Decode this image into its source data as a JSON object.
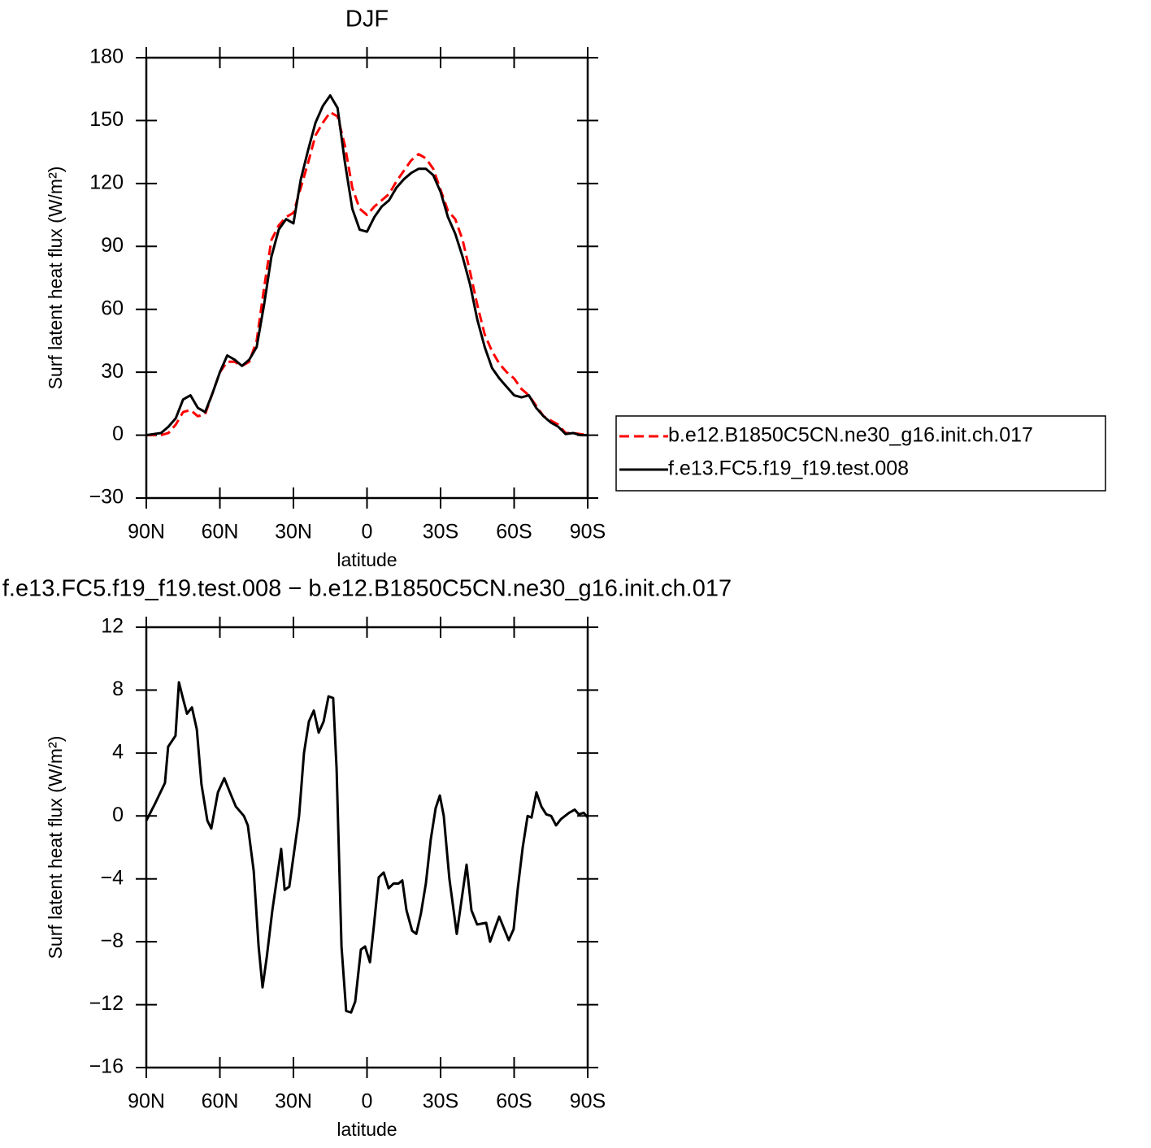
{
  "chart_data": [
    {
      "type": "line",
      "title": "DJF",
      "xlabel": "latitude",
      "ylabel": "Surf latent heat flux (W/m²)",
      "xlim": [
        90,
        -90
      ],
      "ylim": [
        -30,
        180
      ],
      "xticks": [
        {
          "value": 90,
          "label": "90N"
        },
        {
          "value": 60,
          "label": "60N"
        },
        {
          "value": 30,
          "label": "30N"
        },
        0,
        {
          "value": -30,
          "label": "30S"
        },
        {
          "value": -60,
          "label": "60S"
        },
        {
          "value": -90,
          "label": "90S"
        }
      ],
      "yticks": [
        {
          "value": -30,
          "label": "−30"
        },
        0,
        30,
        60,
        90,
        120,
        150,
        180
      ],
      "legend": "right",
      "x": [
        90,
        87,
        84,
        81,
        78,
        75,
        72,
        69,
        66,
        63,
        60,
        57,
        54,
        51,
        48,
        45,
        42,
        39,
        36,
        33,
        30,
        27,
        24,
        21,
        18,
        15,
        12,
        9,
        6,
        3,
        0,
        -3,
        -6,
        -9,
        -12,
        -15,
        -18,
        -21,
        -24,
        -27,
        -30,
        -33,
        -36,
        -39,
        -42,
        -45,
        -48,
        -51,
        -54,
        -57,
        -60,
        -63,
        -66,
        -69,
        -72,
        -75,
        -78,
        -81,
        -84,
        -87,
        -90
      ],
      "series": [
        {
          "name": "b.e12.B1850C5CN.ne30_g16.init.ch.017",
          "color": "#ff0000",
          "linestyle": "dashed",
          "values": [
            0,
            0,
            0,
            1,
            5,
            11,
            12,
            9,
            10,
            20,
            30,
            35,
            35,
            33,
            35,
            45,
            70,
            93,
            100,
            104,
            106,
            118,
            130,
            143,
            149,
            154,
            152,
            138,
            118,
            108,
            105,
            109,
            112,
            115,
            121,
            126,
            131,
            134,
            132,
            127,
            117,
            107,
            103,
            93,
            78,
            62,
            48,
            40,
            34,
            30,
            27,
            22,
            19,
            14,
            9,
            7,
            5,
            1,
            1,
            0.5,
            0
          ]
        },
        {
          "name": "f.e13.FC5.f19_f19.test.008",
          "color": "#000000",
          "linestyle": "solid",
          "values": [
            0,
            0.5,
            1,
            4,
            8,
            17,
            19,
            13,
            11,
            20,
            30,
            38,
            36,
            33,
            36,
            42,
            62,
            85,
            98,
            103,
            101,
            122,
            136,
            149,
            157,
            162,
            156,
            130,
            108,
            98,
            97,
            104,
            109,
            112,
            118,
            122,
            125,
            127,
            127,
            124,
            116,
            104,
            96,
            85,
            72,
            55,
            42,
            32,
            27,
            23,
            19,
            18,
            19,
            13,
            9,
            6,
            4,
            0.5,
            1,
            0,
            0
          ]
        }
      ]
    },
    {
      "type": "line",
      "title": "f.e13.FC5.f19_f19.test.008 − b.e12.B1850C5CN.ne30_g16.init.ch.017",
      "xlabel": "latitude",
      "ylabel": "Surf latent heat flux (W/m²)",
      "xlim": [
        90,
        -90
      ],
      "ylim": [
        -16,
        12
      ],
      "xticks": [
        {
          "value": 90,
          "label": "90N"
        },
        {
          "value": 60,
          "label": "60N"
        },
        {
          "value": 30,
          "label": "30N"
        },
        0,
        {
          "value": -30,
          "label": "30S"
        },
        {
          "value": -60,
          "label": "60S"
        },
        {
          "value": -90,
          "label": "90S"
        }
      ],
      "yticks": [
        {
          "value": -16,
          "label": "−16"
        },
        {
          "value": -12,
          "label": "−12"
        },
        {
          "value": -8,
          "label": "−8"
        },
        {
          "value": -4,
          "label": "−4"
        },
        0,
        4,
        8,
        12
      ],
      "x": [
        90,
        86.7,
        82.4,
        81.1,
        78.1,
        76.7,
        75.1,
        73.4,
        71.4,
        69.4,
        67.5,
        65.1,
        63.5,
        60.8,
        58.2,
        55.9,
        53.5,
        50.2,
        48.6,
        46.2,
        44.2,
        42.6,
        40.9,
        38.6,
        35.0,
        33.6,
        31.7,
        27.7,
        25.7,
        23.7,
        21.7,
        19.7,
        17.7,
        15.7,
        13.8,
        12.4,
        10.4,
        8.5,
        6.5,
        4.8,
        2.5,
        0.8,
        -1.2,
        -2.8,
        -4.8,
        -6.8,
        -8.8,
        -10.8,
        -12.8,
        -14.4,
        -16.1,
        -18.4,
        -20.1,
        -22.0,
        -24.0,
        -26.0,
        -28.0,
        -29.7,
        -31.3,
        -33.6,
        -36.6,
        -40.6,
        -42.6,
        -44.9,
        -48.6,
        -50.2,
        -53.9,
        -57.8,
        -59.8,
        -61.5,
        -63.5,
        -65.5,
        -67.1,
        -69.1,
        -71.1,
        -73.1,
        -75.1,
        -77.1,
        -79.1,
        -82.4,
        -84.7,
        -86.4,
        -88.4,
        -90
      ],
      "series": [
        {
          "color": "#000000",
          "linestyle": "solid",
          "values": [
            -0.3,
            0.7,
            2.1,
            4.4,
            5.1,
            8.5,
            7.5,
            6.5,
            6.9,
            5.5,
            2,
            -0.3,
            -0.8,
            1.5,
            2.4,
            1.5,
            0.6,
            0,
            -0.6,
            -3.5,
            -8.3,
            -10.9,
            -9,
            -6,
            -2.1,
            -4.7,
            -4.5,
            0,
            4,
            6,
            6.7,
            5.3,
            6,
            7.6,
            7.5,
            3,
            -8.3,
            -12.4,
            -12.5,
            -11.8,
            -8.5,
            -8.3,
            -9.3,
            -7,
            -3.9,
            -3.6,
            -4.6,
            -4.3,
            -4.3,
            -4.1,
            -6,
            -7.3,
            -7.5,
            -6.2,
            -4.3,
            -1.5,
            0.5,
            1.3,
            0,
            -4,
            -7.5,
            -3.1,
            -6,
            -6.9,
            -6.8,
            -8,
            -6.4,
            -7.9,
            -7.2,
            -4.6,
            -2,
            0,
            -0.1,
            1.5,
            0.6,
            0.1,
            0,
            -0.6,
            -0.2,
            0.2,
            0.4,
            0.1,
            0.2,
            -0.1
          ]
        }
      ]
    }
  ]
}
